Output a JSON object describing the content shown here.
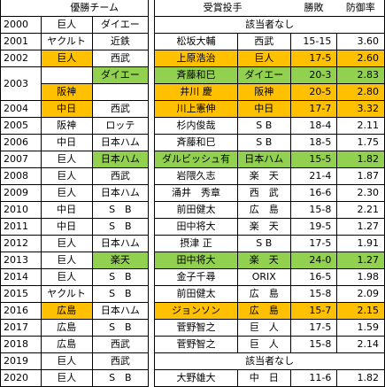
{
  "headers": {
    "winners": "優勝チーム",
    "award": "受賞投手",
    "record": "勝敗",
    "era": "防御率"
  },
  "rows": [
    {
      "year": "2000",
      "central": "巨人",
      "pacific": "ダイエー",
      "none": "該当者なし"
    },
    {
      "year": "2001",
      "central": "ヤクルト",
      "pacific": "近鉄",
      "pitcher": "松坂大輔",
      "team": "西武",
      "record": "15-15",
      "era": "3.60"
    },
    {
      "year": "2002",
      "central": "巨人",
      "pacific": "西武",
      "pitcher": "上原浩治",
      "team": "巨人",
      "record": "17-5",
      "era": "2.60",
      "hl": {
        "central": "or",
        "pitcher": "or",
        "team": "or",
        "record": "or",
        "era": "or"
      }
    },
    {
      "year": "2003",
      "central": "",
      "pacific": "ダイエー",
      "pitcher": "斉藤和巳",
      "team": "ダイエー",
      "record": "20-3",
      "era": "2.83",
      "hl": {
        "pacific": "gr",
        "pitcher": "gr",
        "team": "gr",
        "record": "gr",
        "era": "gr"
      }
    },
    {
      "year": "",
      "central": "阪神",
      "pacific": "",
      "pitcher": "井川 慶",
      "team": "阪神",
      "record": "20-5",
      "era": "2.80",
      "hl": {
        "central": "or",
        "pitcher": "or",
        "team": "or",
        "record": "or",
        "era": "or"
      }
    },
    {
      "year": "2004",
      "central": "中日",
      "pacific": "西武",
      "pitcher": "川上憲伸",
      "team": "中日",
      "record": "17-7",
      "era": "3.32",
      "hl": {
        "central": "or",
        "pitcher": "or",
        "team": "or",
        "record": "or",
        "era": "or"
      }
    },
    {
      "year": "2005",
      "central": "阪神",
      "pacific": "ロッテ",
      "pitcher": "杉内俊哉",
      "team": "S B",
      "record": "18-4",
      "era": "2.11"
    },
    {
      "year": "2006",
      "central": "中日",
      "pacific": "日本ハム",
      "pitcher": "斉藤和巳",
      "team": "S B",
      "record": "18-5",
      "era": "1.75"
    },
    {
      "year": "2007",
      "central": "巨人",
      "pacific": "日本ハム",
      "pitcher": "ダルビッシュ有",
      "team": "日本ハム",
      "record": "15-5",
      "era": "1.82",
      "hl": {
        "pacific": "gr",
        "pitcher": "gr",
        "team": "gr",
        "record": "gr",
        "era": "gr"
      }
    },
    {
      "year": "2008",
      "central": "巨人",
      "pacific": "西武",
      "pitcher": "岩隈久志",
      "team": "楽　天",
      "record": "21-4",
      "era": "1.87"
    },
    {
      "year": "2009",
      "central": "巨人",
      "pacific": "日本ハム",
      "pitcher": "涌井　秀章",
      "team": "西　武",
      "record": "16-6",
      "era": "2.30"
    },
    {
      "year": "2010",
      "central": "中日",
      "pacific": "S　B",
      "pitcher": "前田健太",
      "team": "広　島",
      "record": "15-8",
      "era": "2.21"
    },
    {
      "year": "2011",
      "central": "中日",
      "pacific": "S　B",
      "pitcher": "田中将大",
      "team": "楽　天",
      "record": "19-5",
      "era": "1.27"
    },
    {
      "year": "2012",
      "central": "巨人",
      "pacific": "日本ハム",
      "pitcher": "摂津 正",
      "team": "S B",
      "record": "17-5",
      "era": "1.91"
    },
    {
      "year": "2013",
      "central": "巨人",
      "pacific": "楽天",
      "pitcher": "田中将大",
      "team": "楽　天",
      "record": "24-0",
      "era": "1.27",
      "hl": {
        "pacific": "gr",
        "pitcher": "gr",
        "team": "gr",
        "record": "gr",
        "era": "gr"
      }
    },
    {
      "year": "2014",
      "central": "巨人",
      "pacific": "S　B",
      "pitcher": "金子千尋",
      "team": "ORIX",
      "record": "16-5",
      "era": "1.98"
    },
    {
      "year": "2015",
      "central": "ヤクルト",
      "pacific": "S　B",
      "pitcher": "前田健太",
      "team": "広　島",
      "record": "15-8",
      "era": "2.09"
    },
    {
      "year": "2016",
      "central": "広島",
      "pacific": "日本ハム",
      "pitcher": "ジョンソン",
      "team": "広　島",
      "record": "15-7",
      "era": "2.15",
      "hl": {
        "central": "or",
        "pitcher": "or",
        "team": "or",
        "record": "or",
        "era": "or"
      }
    },
    {
      "year": "2017",
      "central": "広島",
      "pacific": "S　B",
      "pitcher": "菅野智之",
      "team": "巨　人",
      "record": "17-5",
      "era": "1.59"
    },
    {
      "year": "2018",
      "central": "広島",
      "pacific": "西武",
      "pitcher": "菅野智之",
      "team": "巨　人",
      "record": "15-8",
      "era": "2.14"
    },
    {
      "year": "2019",
      "central": "巨人",
      "pacific": "西武",
      "none": "該当者なし"
    },
    {
      "year": "2020",
      "central": "巨人",
      "pacific": "S　B",
      "pitcher": "大野雄大",
      "team": "中　日",
      "record": "11-6",
      "era": "1.82"
    }
  ]
}
